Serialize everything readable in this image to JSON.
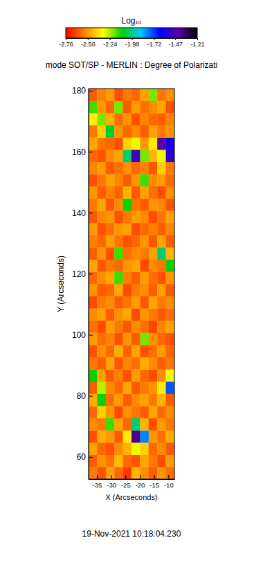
{
  "chart_data": {
    "type": "heatmap",
    "title": "mode SOT/SP - MERLIN : Degree of Polarizati",
    "x_label": "X (Arcseconds)",
    "y_label": "Y (Arcseconds)",
    "date": "19-Nov-2021 10:18:04.230",
    "xlim": [
      -37.9,
      -7.9
    ],
    "ylim": [
      52.7,
      180.7
    ],
    "xticks": [
      -35,
      -30,
      -25,
      -20,
      -15,
      -10
    ],
    "yticks": [
      60,
      80,
      100,
      120,
      140,
      160,
      180
    ],
    "x": [
      -36.4,
      -33.4,
      -30.4,
      -27.4,
      -24.4,
      -21.4,
      -18.4,
      -15.4,
      -12.4,
      -9.4
    ],
    "y": [
      54.7,
      58.7,
      62.7,
      66.7,
      70.7,
      74.7,
      78.7,
      82.7,
      86.7,
      90.7,
      94.7,
      98.7,
      102.7,
      106.7,
      110.7,
      114.7,
      118.7,
      122.7,
      126.7,
      130.7,
      134.7,
      138.7,
      142.7,
      146.7,
      150.7,
      154.7,
      158.7,
      162.7,
      166.7,
      170.7,
      174.7,
      178.7
    ],
    "z": [
      [
        -2.55,
        -2.62,
        -2.48,
        -2.58,
        -2.66,
        -2.45,
        -2.52,
        -2.6,
        -2.5,
        -2.57
      ],
      [
        -2.6,
        -2.5,
        -2.56,
        -2.44,
        -2.58,
        -2.62,
        -2.47,
        -2.55,
        -2.63,
        -2.49
      ],
      [
        -2.48,
        -2.58,
        -2.62,
        -2.52,
        -2.45,
        -2.3,
        -2.4,
        -2.58,
        -2.52,
        -2.61
      ],
      [
        -2.62,
        -2.46,
        -2.5,
        -2.6,
        -2.35,
        -1.4,
        -1.8,
        -2.5,
        -2.57,
        -2.46
      ],
      [
        -2.52,
        -2.55,
        -2.15,
        -2.48,
        -2.58,
        -2.0,
        -2.45,
        -2.62,
        -2.49,
        -2.55
      ],
      [
        -2.58,
        -2.4,
        -2.5,
        -2.63,
        -2.51,
        -2.56,
        -2.6,
        -2.47,
        -2.58,
        -2.52
      ],
      [
        -2.46,
        -2.1,
        -2.57,
        -2.49,
        -2.6,
        -2.52,
        -2.48,
        -2.55,
        -2.45,
        -2.6
      ],
      [
        -2.6,
        -2.25,
        -2.52,
        -2.58,
        -2.47,
        -2.61,
        -2.55,
        -2.5,
        -2.35,
        -1.75
      ],
      [
        -2.1,
        -2.48,
        -2.6,
        -2.54,
        -2.62,
        -2.49,
        -2.58,
        -2.63,
        -2.52,
        -2.3
      ],
      [
        -2.55,
        -2.6,
        -2.47,
        -2.61,
        -2.53,
        -2.57,
        -2.46,
        -2.52,
        -2.6,
        -2.55
      ],
      [
        -2.62,
        -2.51,
        -2.58,
        -2.46,
        -2.59,
        -2.48,
        -2.62,
        -2.57,
        -2.49,
        -2.58
      ],
      [
        -2.49,
        -2.57,
        -2.53,
        -2.62,
        -2.5,
        -2.6,
        -2.2,
        -2.51,
        -2.58,
        -2.62
      ],
      [
        -2.57,
        -2.63,
        -2.49,
        -2.55,
        -2.61,
        -2.52,
        -2.57,
        -2.64,
        -2.53,
        -2.48
      ],
      [
        -2.52,
        -2.48,
        -2.6,
        -2.51,
        -2.47,
        -2.63,
        -2.5,
        -2.55,
        -2.61,
        -2.57
      ],
      [
        -2.63,
        -2.55,
        -2.52,
        -2.6,
        -2.56,
        -2.49,
        -2.61,
        -2.47,
        -2.55,
        -2.52
      ],
      [
        -2.5,
        -2.6,
        -2.58,
        -2.47,
        -2.63,
        -2.55,
        -2.52,
        -2.6,
        -2.48,
        -2.61
      ],
      [
        -2.58,
        -2.52,
        -2.47,
        -2.15,
        -2.54,
        -2.6,
        -2.49,
        -2.57,
        -2.62,
        -2.5
      ],
      [
        -2.47,
        -2.61,
        -2.55,
        -2.58,
        -2.5,
        -2.47,
        -2.63,
        -2.52,
        -2.56,
        -2.1
      ],
      [
        -2.6,
        -2.5,
        -2.62,
        -2.15,
        -2.57,
        -2.52,
        -2.55,
        -2.48,
        -2.0,
        -2.45
      ],
      [
        -2.54,
        -2.58,
        -2.49,
        -2.56,
        -2.62,
        -2.58,
        -2.5,
        -2.61,
        -2.47,
        -2.6
      ],
      [
        -2.49,
        -2.62,
        -2.57,
        -2.5,
        -2.48,
        -2.63,
        -2.58,
        -2.54,
        -2.6,
        -2.53
      ],
      [
        -2.61,
        -2.53,
        -2.5,
        -2.62,
        -2.55,
        -2.49,
        -2.52,
        -2.63,
        -2.56,
        -2.48
      ],
      [
        -2.55,
        -2.47,
        -2.61,
        -2.52,
        -2.1,
        -2.56,
        -2.6,
        -2.5,
        -2.52,
        -2.62
      ],
      [
        -2.5,
        -2.6,
        -2.54,
        -2.59,
        -2.45,
        -2.61,
        -2.48,
        -2.57,
        -2.63,
        -2.51
      ],
      [
        -2.62,
        -2.55,
        -2.48,
        -2.53,
        -2.6,
        -2.5,
        -2.15,
        -2.52,
        -2.49,
        -2.58
      ],
      [
        -2.53,
        -2.49,
        -2.6,
        -2.57,
        -2.51,
        -2.58,
        -2.54,
        -2.61,
        -2.4,
        -2.55
      ],
      [
        -2.58,
        -2.62,
        -2.52,
        -2.48,
        -2.0,
        -1.5,
        -2.2,
        -2.45,
        -2.3,
        -1.55
      ],
      [
        -2.47,
        -2.56,
        -2.58,
        -2.62,
        -2.4,
        -2.3,
        -2.5,
        -2.35,
        -1.45,
        -1.6
      ],
      [
        -2.55,
        -2.4,
        -2.05,
        -2.5,
        -2.58,
        -2.52,
        -2.6,
        -2.48,
        -2.55,
        -2.5
      ],
      [
        -2.35,
        -2.2,
        -2.45,
        -2.57,
        -2.5,
        -2.62,
        -2.53,
        -2.58,
        -2.6,
        -2.54
      ],
      [
        -2.15,
        -2.5,
        -2.58,
        -2.2,
        -2.61,
        -2.49,
        -2.57,
        -2.52,
        -2.47,
        -2.62
      ],
      [
        -2.6,
        -2.53,
        -2.49,
        -2.62,
        -2.55,
        -2.58,
        -2.48,
        -2.2,
        -2.56,
        -2.51
      ]
    ],
    "colorbar": {
      "label": "Log₁₀",
      "range": [
        -2.76,
        -1.21
      ],
      "ticks": [
        -2.76,
        {
          "value": -2.5,
          "label": "-2.50"
        },
        -2.24,
        -1.98,
        -1.72,
        -1.47,
        -1.21
      ]
    }
  }
}
